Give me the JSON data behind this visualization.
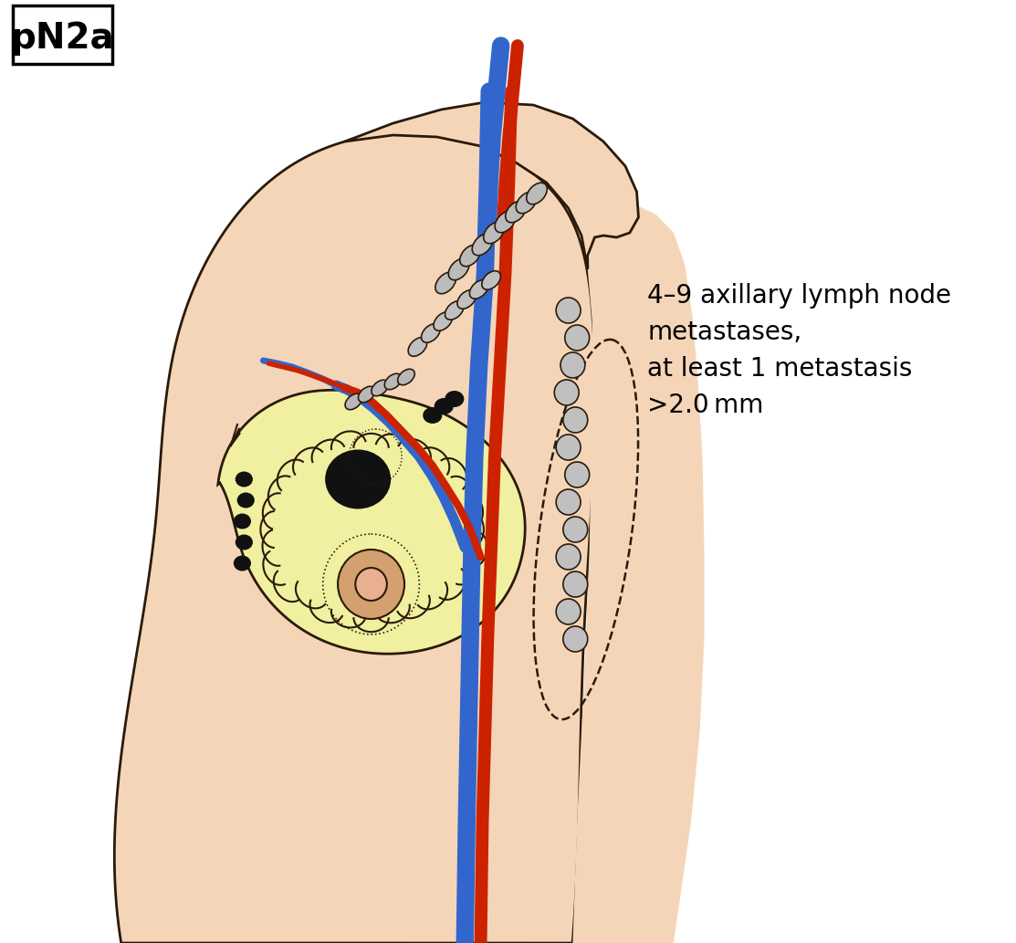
{
  "bg_color": "#ffffff",
  "skin_color": "#f5d5b8",
  "skin_outline": "#2a1a0a",
  "breast_yellow": "#f0f0a0",
  "breast_outline": "#1a1a1a",
  "tumor_color": "#111111",
  "nipple_outer": "#d4a070",
  "nipple_inner": "#e8b090",
  "blood_blue": "#3366cc",
  "blood_red": "#cc2200",
  "lymph_gray": "#aaaaaa",
  "lymph_dark": "#111111",
  "label_text": "pN2a",
  "annotation_line1": "4–9 axillary lymph node",
  "annotation_line2": "metastases,",
  "annotation_line3": "at least 1 metastasis",
  "annotation_line4": ">2.0 mm"
}
